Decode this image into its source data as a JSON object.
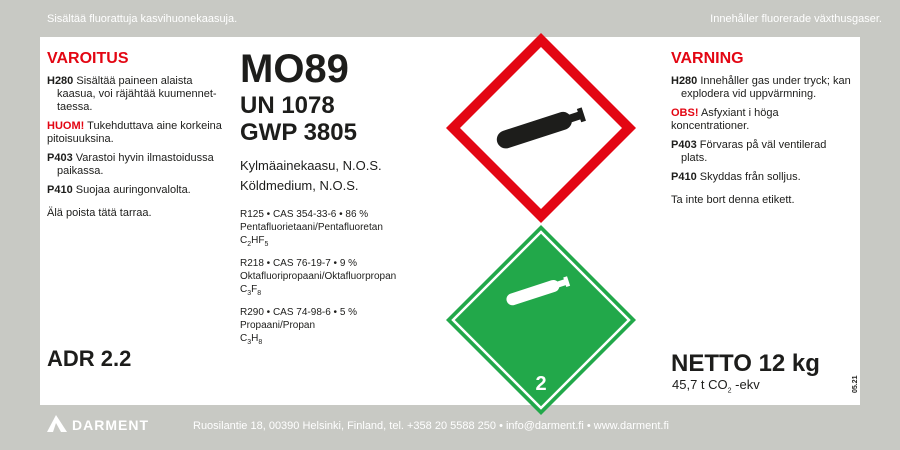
{
  "top_left": "Sisältää fluorattuja kasvihuonekaasuja.",
  "top_right": "Innehåller fluorerade växthusgaser.",
  "fi": {
    "heading": "VAROITUS",
    "h280_code": "H280",
    "h280": "Sisältää paineen alaista kaasua, voi räjähtää kuumennet-taessa.",
    "note_code": "HUOM!",
    "note": "Tukehduttava aine korkeina pitoisuuksina.",
    "p403_code": "P403",
    "p403": "Varastoi hyvin ilmastoidussa paikassa.",
    "p410_code": "P410",
    "p410": "Suojaa auringonvalolta.",
    "remove": "Älä poista tätä tarraa."
  },
  "sv": {
    "heading": "VARNING",
    "h280_code": "H280",
    "h280": "Innehåller gas under tryck; kan explodera vid uppvärmning.",
    "note_code": "OBS!",
    "note": "Asfyxiant i höga koncentrationer.",
    "p403_code": "P403",
    "p403": "Förvaras på väl ventilerad plats.",
    "p410_code": "P410",
    "p410": "Skyddas från solljus.",
    "remove": "Ta inte bort denna etikett."
  },
  "product": {
    "name": "MO89",
    "un": "UN 1078",
    "gwp": "GWP 3805",
    "desc_fi": "Kylmäainekaasu, N.O.S.",
    "desc_sv": "Köldmedium, N.O.S."
  },
  "components": [
    {
      "line": "R125 • CAS 354-33-6 • 86 %",
      "name": "Pentafluorietaani/Pentafluoretan",
      "f1": "C",
      "s1": "2",
      "f2": "HF",
      "s2": "5"
    },
    {
      "line": "R218 • CAS 76-19-7 • 9 %",
      "name": "Oktafluoripropaani/Oktafluorpropan",
      "f1": "C",
      "s1": "3",
      "f2": "F",
      "s2": "8"
    },
    {
      "line": "R290 • CAS 74-98-6 • 5 %",
      "name": "Propaani/Propan",
      "f1": "C",
      "s1": "3",
      "f2": "H",
      "s2": "8"
    }
  ],
  "adr": "ADR 2.2",
  "netto": "NETTO 12 kg",
  "co2_a": "45,7 t CO",
  "co2_sub": "2",
  "co2_b": " -ekv",
  "class_number": "2",
  "version": "05.21",
  "brand": "DARMENT",
  "footer": "Ruosilantie 18, 00390 Helsinki, Finland, tel. +358 20 5588 250 • info@darment.fi • www.darment.fi",
  "colors": {
    "red": "#e30613",
    "green": "#22a84a",
    "background": "#c8c9c4"
  }
}
